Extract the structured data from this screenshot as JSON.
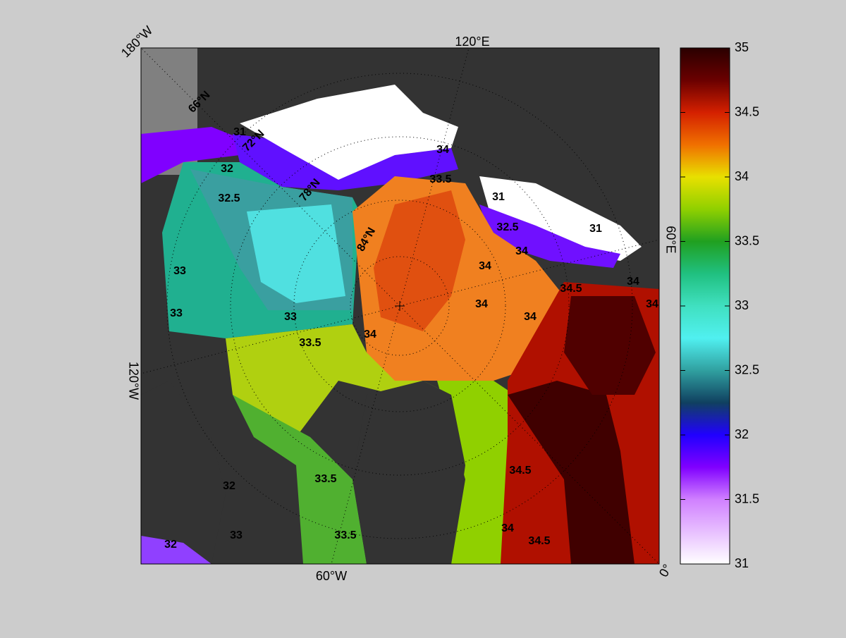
{
  "map": {
    "lon_labels": [
      "180°W",
      "120°E",
      "60°E",
      "0°",
      "60°W",
      "120°W"
    ],
    "lat_labels": [
      "66°N",
      "72°N",
      "78°N",
      "84°N"
    ],
    "contour_labels": [
      31,
      32,
      32.5,
      33,
      33.5,
      34,
      34,
      34,
      34,
      34.5,
      34,
      34,
      34,
      34.5,
      34,
      34.5,
      33.5,
      33.5,
      33,
      32,
      32,
      33,
      33,
      31,
      31,
      33.5,
      34,
      32.5
    ]
  },
  "colorbar": {
    "lim": [
      31,
      35
    ],
    "ticks": [
      31,
      31.5,
      32,
      32.5,
      33,
      33.5,
      34,
      34.5,
      35
    ]
  }
}
